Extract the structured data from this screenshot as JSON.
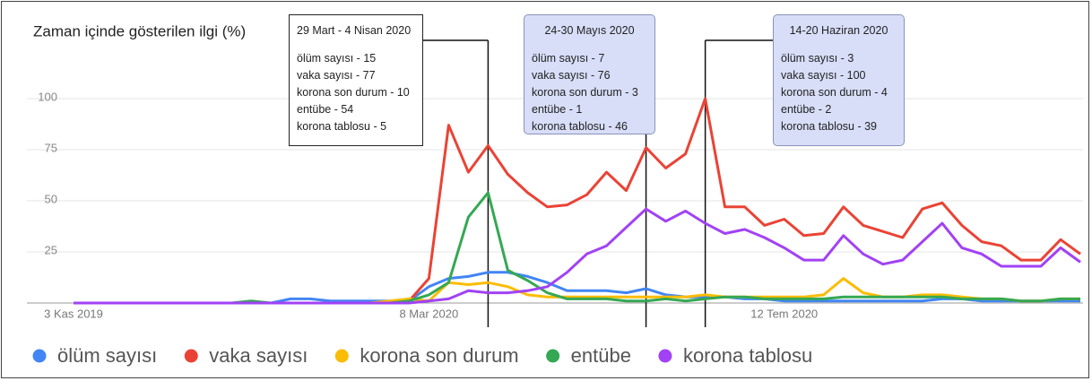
{
  "chart_data": {
    "type": "line",
    "title": "Zaman içinde gösterilen ilgi (%)",
    "categories": [
      "3 Kas 2019",
      null,
      null,
      null,
      null,
      null,
      null,
      null,
      null,
      null,
      null,
      null,
      null,
      null,
      null,
      null,
      null,
      null,
      "8 Mar 2020",
      null,
      null,
      null,
      null,
      null,
      null,
      null,
      null,
      null,
      null,
      null,
      null,
      null,
      null,
      null,
      null,
      null,
      "12 Tem 2020",
      null,
      null,
      null,
      null,
      null,
      null,
      null,
      null,
      null,
      null,
      null,
      null,
      null,
      null,
      null
    ],
    "ylim": [
      0,
      100
    ],
    "yticks": [
      0,
      25,
      50,
      75,
      100
    ],
    "grid": true,
    "legend": "bottom",
    "series": [
      {
        "name": "ölüm sayısı",
        "color": "#4285f4",
        "values": [
          0,
          0,
          0,
          0,
          0,
          0,
          0,
          0,
          0,
          0,
          0,
          2,
          2,
          1,
          1,
          1,
          1,
          1,
          8,
          12,
          13,
          15,
          15,
          13,
          10,
          6,
          6,
          6,
          5,
          7,
          4,
          3,
          3,
          3,
          2,
          2,
          1,
          1,
          1,
          1,
          1,
          1,
          1,
          1,
          2,
          2,
          1,
          1,
          1,
          1,
          1,
          1
        ]
      },
      {
        "name": "vaka sayısı",
        "color": "#ea4335",
        "values": [
          0,
          0,
          0,
          0,
          0,
          0,
          0,
          0,
          0,
          0,
          0,
          0,
          0,
          0,
          0,
          0,
          0,
          1,
          12,
          87,
          64,
          77,
          63,
          54,
          47,
          48,
          53,
          64,
          55,
          76,
          66,
          73,
          100,
          47,
          47,
          38,
          41,
          33,
          34,
          47,
          38,
          35,
          32,
          46,
          49,
          38,
          30,
          28,
          21,
          21,
          31,
          24
        ]
      },
      {
        "name": "korona son durum",
        "color": "#fbbc04",
        "values": [
          0,
          0,
          0,
          0,
          0,
          0,
          0,
          0,
          0,
          0,
          0,
          0,
          0,
          0,
          0,
          0,
          1,
          2,
          1,
          10,
          9,
          10,
          8,
          4,
          3,
          3,
          3,
          3,
          3,
          3,
          3,
          3,
          4,
          3,
          3,
          3,
          3,
          3,
          4,
          12,
          5,
          3,
          3,
          4,
          4,
          3,
          2,
          2,
          1,
          1,
          2,
          2
        ]
      },
      {
        "name": "entübe",
        "color": "#34a853",
        "values": [
          0,
          0,
          0,
          0,
          0,
          0,
          0,
          0,
          0,
          1,
          0,
          0,
          0,
          0,
          0,
          0,
          0,
          1,
          4,
          10,
          42,
          54,
          16,
          11,
          5,
          2,
          2,
          2,
          1,
          1,
          2,
          1,
          2,
          3,
          3,
          2,
          2,
          2,
          2,
          3,
          3,
          3,
          3,
          3,
          3,
          2,
          2,
          2,
          1,
          1,
          2,
          2
        ]
      },
      {
        "name": "korona tablosu",
        "color": "#a142f4",
        "values": [
          0,
          0,
          0,
          0,
          0,
          0,
          0,
          0,
          0,
          0,
          0,
          0,
          0,
          0,
          0,
          0,
          0,
          0,
          1,
          2,
          6,
          5,
          5,
          6,
          8,
          15,
          24,
          28,
          37,
          46,
          40,
          45,
          39,
          34,
          36,
          32,
          27,
          21,
          21,
          33,
          24,
          19,
          21,
          30,
          39,
          27,
          24,
          18,
          18,
          18,
          27,
          20
        ]
      }
    ],
    "annotations": [
      {
        "category": 21,
        "title": "29 Mart - 4 Nisan 2020",
        "lines": [
          "ölüm sayısı - 15",
          "vaka sayısı - 77",
          "korona son durum - 10",
          "entübe - 54",
          "korona tablosu - 5"
        ]
      },
      {
        "category": 29,
        "title": "24-30 Mayıs 2020",
        "lines": [
          "ölüm sayısı - 7",
          "vaka sayısı - 76",
          "korona son durum - 3",
          "entübe - 1",
          "korona tablosu - 46"
        ]
      },
      {
        "category": 32,
        "title": "14-20 Haziran 2020",
        "lines": [
          "ölüm sayısı - 3",
          "vaka sayısı - 100",
          "korona son durum - 4",
          "entübe - 2",
          "korona tablosu - 39"
        ]
      }
    ]
  }
}
